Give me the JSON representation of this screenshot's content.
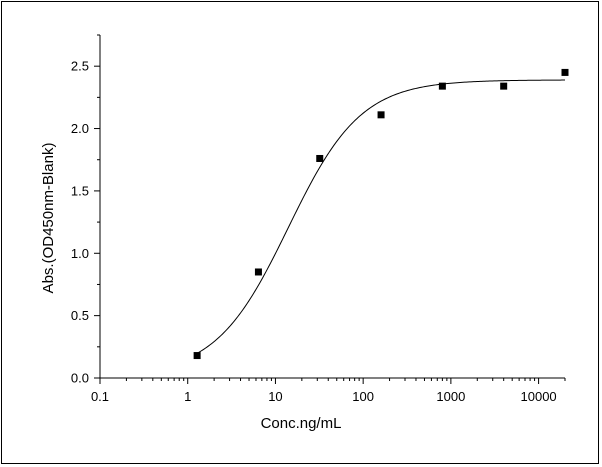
{
  "chart_data": {
    "type": "scatter",
    "title": "",
    "xlabel": "Conc.ng/mL",
    "ylabel": "Abs.(OD450nm-Blank)",
    "x_scale": "log",
    "xlim": [
      0.1,
      20000
    ],
    "ylim": [
      0.0,
      2.75
    ],
    "x_ticks": [
      0.1,
      1,
      10,
      100,
      1000,
      10000
    ],
    "x_tick_labels": [
      "0.1",
      "1",
      "10",
      "100",
      "1000",
      "10000"
    ],
    "y_ticks": [
      0.0,
      0.5,
      1.0,
      1.5,
      2.0,
      2.5
    ],
    "y_tick_labels": [
      "0.0",
      "0.5",
      "1.0",
      "1.5",
      "2.0",
      "2.5"
    ],
    "grid": false,
    "series": [
      {
        "marker": "square",
        "color": "#000000",
        "x": [
          1.28,
          6.4,
          32,
          160,
          800,
          4000,
          20000
        ],
        "y": [
          0.18,
          0.85,
          1.76,
          2.11,
          2.34,
          2.34,
          2.45
        ]
      }
    ],
    "fit_curve": {
      "type": "4PL",
      "color": "#000000",
      "bottom": 0.02,
      "top": 2.39,
      "ec50": 14,
      "hill": 1.05,
      "x_range": [
        1.2,
        20000
      ]
    }
  }
}
